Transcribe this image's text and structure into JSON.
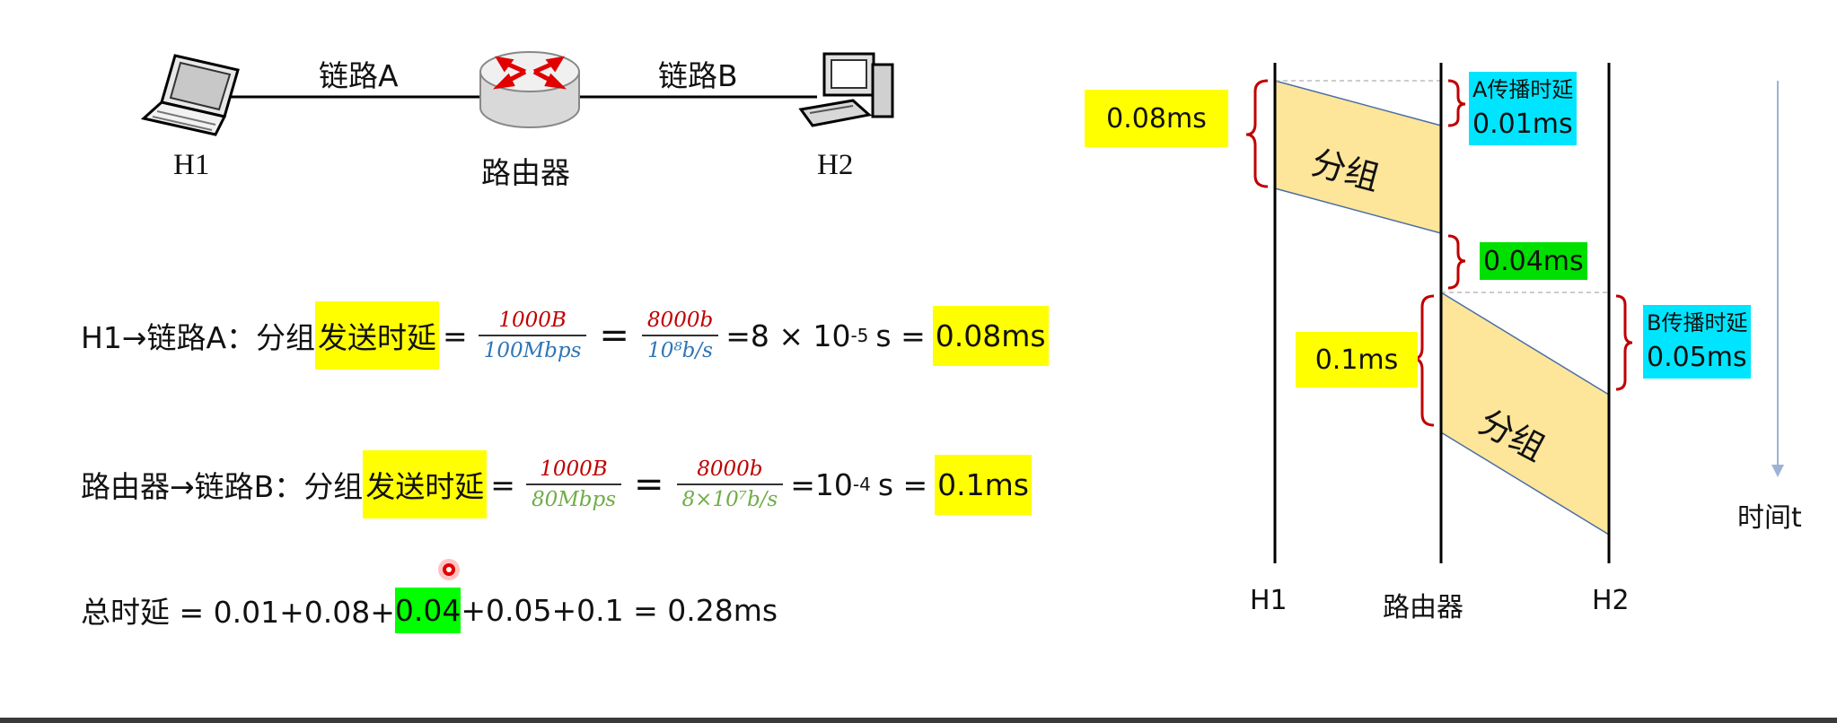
{
  "topology": {
    "link_a": "链路A",
    "link_b": "链路B",
    "h1": "H1",
    "router": "路由器",
    "h2": "H2"
  },
  "formula1": {
    "prefix": "H1→链路A：分组",
    "highlight": "发送时延",
    "eq1": "=",
    "num1": "1000B",
    "den1": "100Mbps",
    "eq2": "=",
    "num2": "8000b",
    "den2": "10⁸b/s",
    "eq3": "=8 × 10",
    "exp": "-5",
    "unit": "s =",
    "result": "0.08ms"
  },
  "formula2": {
    "prefix": "路由器→链路B：分组",
    "highlight": "发送时延",
    "eq1": "=",
    "num1": "1000B",
    "den1": "80Mbps",
    "eq2": "=",
    "num2": "8000b",
    "den2": "8×10⁷b/s",
    "eq3": "=10",
    "exp": "-4",
    "unit": "s =",
    "result": "0.1ms"
  },
  "total": {
    "prefix": "总时延 = 0.01+0.08+",
    "highlight": "0.04",
    "suffix": "+0.05+0.1 = 0.28ms"
  },
  "timing": {
    "tx_a": "0.08ms",
    "prop_a_label": "A传播时延",
    "prop_a_value": "0.01ms",
    "packet_a": "分组",
    "queue_delay": "0.04ms",
    "tx_b": "0.1ms",
    "prop_b_label": "B传播时延",
    "prop_b_value": "0.05ms",
    "packet_b": "分组",
    "time_axis": "时间t",
    "x_h1": "H1",
    "x_router": "路由器",
    "x_h2": "H2"
  },
  "colors": {
    "yellow": "#ffff00",
    "cyan": "#00e5ff",
    "green": "#00e000",
    "packet_fill": "#fde59a",
    "bracket_red": "#c00000",
    "arrow_blue": "#9db3d6"
  }
}
